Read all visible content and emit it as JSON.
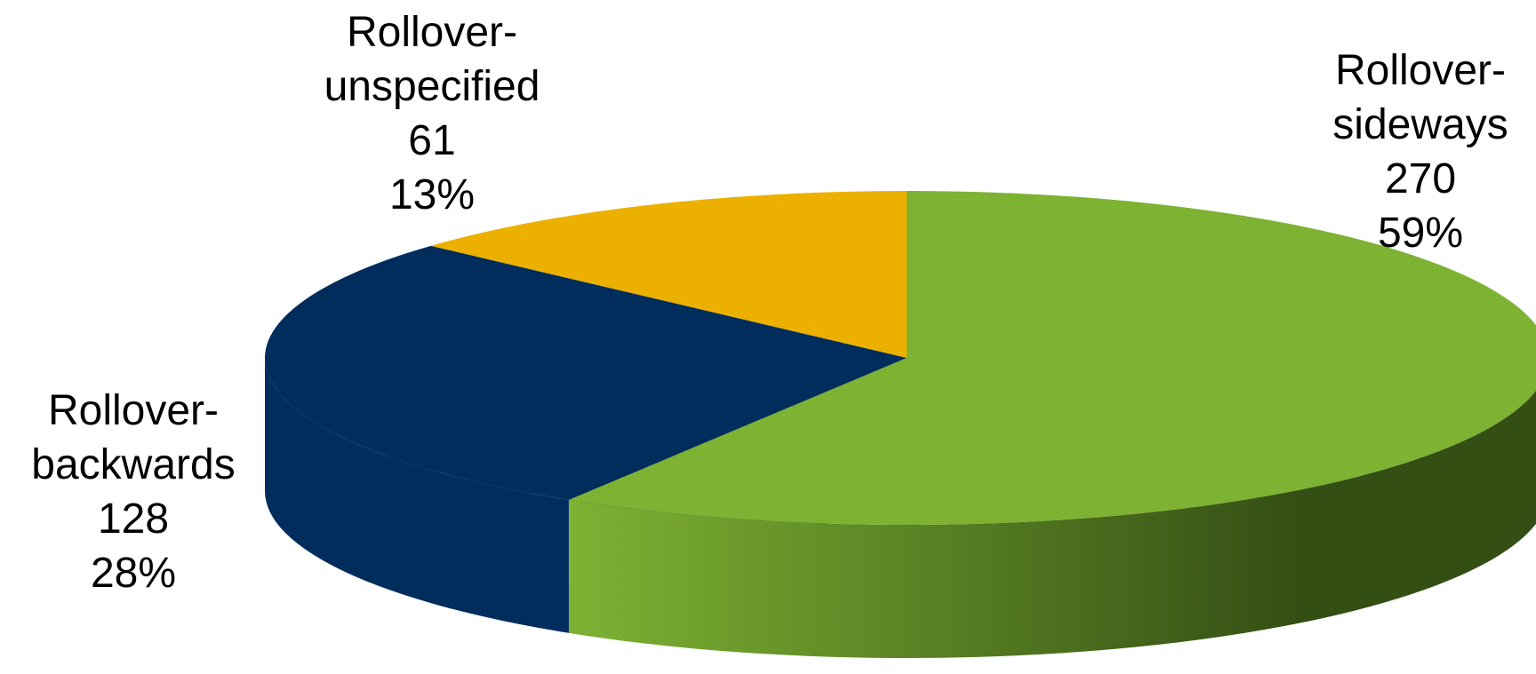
{
  "chart_data": {
    "type": "pie",
    "style": "3d",
    "slices": [
      {
        "label_lines": [
          "Rollover-",
          "sideways"
        ],
        "value": 270,
        "percent": "59%",
        "color": "#7DB233",
        "side_color_dark": "#344F14"
      },
      {
        "label_lines": [
          "Rollover-",
          "backwards"
        ],
        "value": 128,
        "percent": "28%",
        "color": "#002D5C",
        "side_color_dark": "#002D5C"
      },
      {
        "label_lines": [
          "Rollover-",
          "unspecified"
        ],
        "value": 61,
        "percent": "13%",
        "color": "#ECB100",
        "side_color_dark": "#ECB100"
      }
    ],
    "legend": "none"
  }
}
